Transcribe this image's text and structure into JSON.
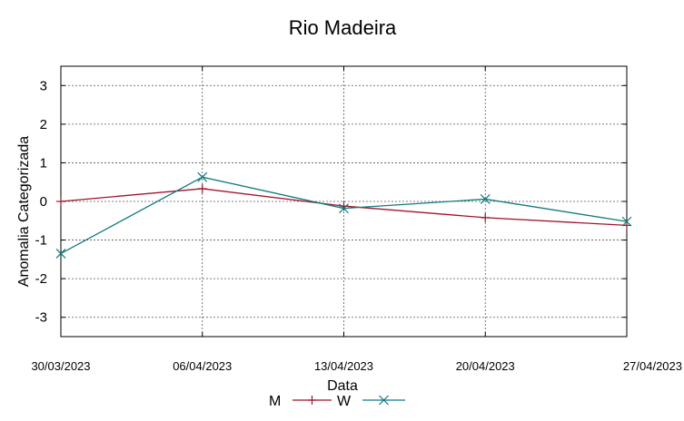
{
  "chart_data": {
    "type": "line",
    "title": "Rio Madeira",
    "xlabel": "Data",
    "ylabel": "Anomalia Categorizada",
    "categories": [
      "30/03/2023",
      "06/04/2023",
      "13/04/2023",
      "20/04/2023",
      "27/04/2023"
    ],
    "ylim": [
      -3.5,
      3.5
    ],
    "yticks": [
      "3",
      "2",
      "1",
      "0",
      "-1",
      "-2",
      "-3"
    ],
    "grid": true,
    "legend_position": "bottom",
    "series": [
      {
        "name": "M",
        "color": "#a0142c",
        "marker": "plus",
        "values": [
          0.0,
          0.33,
          -0.12,
          -0.42,
          -0.62
        ]
      },
      {
        "name": "W",
        "color": "#127a80",
        "marker": "cross",
        "values": [
          -1.35,
          0.63,
          -0.18,
          0.06,
          -0.52
        ]
      }
    ]
  }
}
